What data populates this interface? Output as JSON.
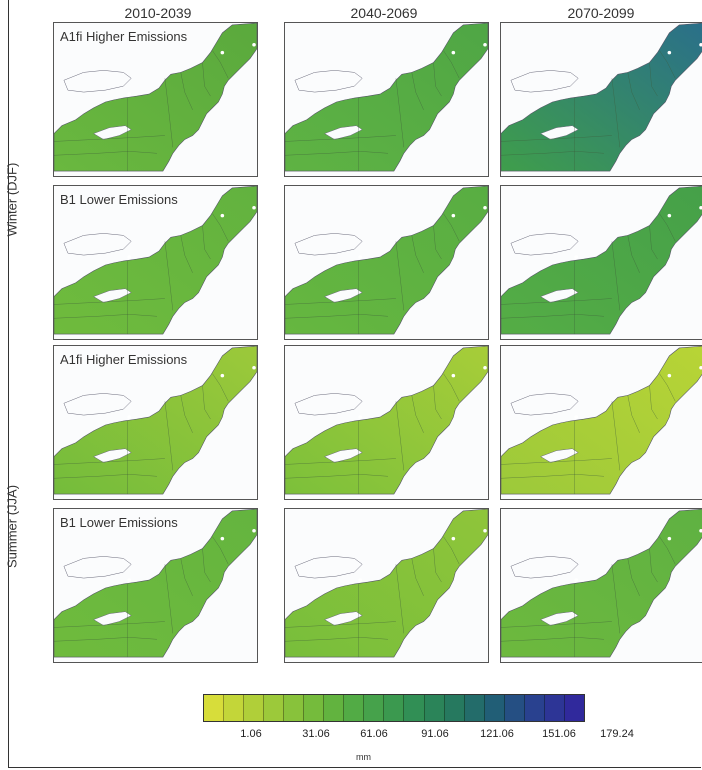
{
  "periods": [
    "2010-2039",
    "2040-2069",
    "2070-2099"
  ],
  "seasons": [
    "Winter (DJF)",
    "Summer (JJA)"
  ],
  "scenario_labels": {
    "a1fi": "A1fi Higher Emissions",
    "b1": "B1 Lower  Emissions"
  },
  "panels": [
    {
      "row": 0,
      "season": "Winter (DJF)",
      "scenario": "a1fi",
      "period": "2010-2039",
      "fill": "#6ab83f",
      "accent": "#5aa93d"
    },
    {
      "row": 0,
      "season": "Winter (DJF)",
      "scenario": "a1fi",
      "period": "2040-2069",
      "fill": "#5fb343",
      "accent": "#4fa645"
    },
    {
      "row": 0,
      "season": "Winter (DJF)",
      "scenario": "a1fi",
      "period": "2070-2099",
      "fill": "#3f9e4b",
      "accent": "#2a6f8a"
    },
    {
      "row": 1,
      "season": "Winter (DJF)",
      "scenario": "b1",
      "period": "2010-2039",
      "fill": "#6fbb3d",
      "accent": "#62b23f"
    },
    {
      "row": 1,
      "season": "Winter (DJF)",
      "scenario": "b1",
      "period": "2040-2069",
      "fill": "#66b740",
      "accent": "#58ad42"
    },
    {
      "row": 1,
      "season": "Winter (DJF)",
      "scenario": "b1",
      "period": "2070-2099",
      "fill": "#55ad45",
      "accent": "#45a049"
    },
    {
      "row": 2,
      "season": "Summer (JJA)",
      "scenario": "a1fi",
      "period": "2010-2039",
      "fill": "#74bc3b",
      "accent": "#9cc93a"
    },
    {
      "row": 2,
      "season": "Summer (JJA)",
      "scenario": "a1fi",
      "period": "2040-2069",
      "fill": "#7cc03a",
      "accent": "#a7cd39"
    },
    {
      "row": 2,
      "season": "Summer (JJA)",
      "scenario": "a1fi",
      "period": "2070-2099",
      "fill": "#9cc93a",
      "accent": "#b8d436"
    },
    {
      "row": 3,
      "season": "Summer (JJA)",
      "scenario": "b1",
      "period": "2010-2039",
      "fill": "#6fbb3d",
      "accent": "#64b43f"
    },
    {
      "row": 3,
      "season": "Summer (JJA)",
      "scenario": "b1",
      "period": "2040-2069",
      "fill": "#78be3b",
      "accent": "#8fc53a"
    },
    {
      "row": 3,
      "season": "Summer (JJA)",
      "scenario": "b1",
      "period": "2070-2099",
      "fill": "#6db93e",
      "accent": "#5fb142"
    }
  ],
  "colorbar": {
    "colors": [
      "#d7dd3a",
      "#c3d639",
      "#b0cf39",
      "#9cc93a",
      "#88c23b",
      "#75bb3c",
      "#62b33f",
      "#52ab45",
      "#46a24b",
      "#3b994f",
      "#318f55",
      "#2b8459",
      "#26795f",
      "#236c6a",
      "#215e76",
      "#254f83",
      "#29418f",
      "#2d3596",
      "#30299c"
    ],
    "tick_labels": [
      "1.06",
      "31.06",
      "61.06",
      "91.06",
      "121.06",
      "151.06",
      "179.24"
    ],
    "unit": "mm"
  }
}
